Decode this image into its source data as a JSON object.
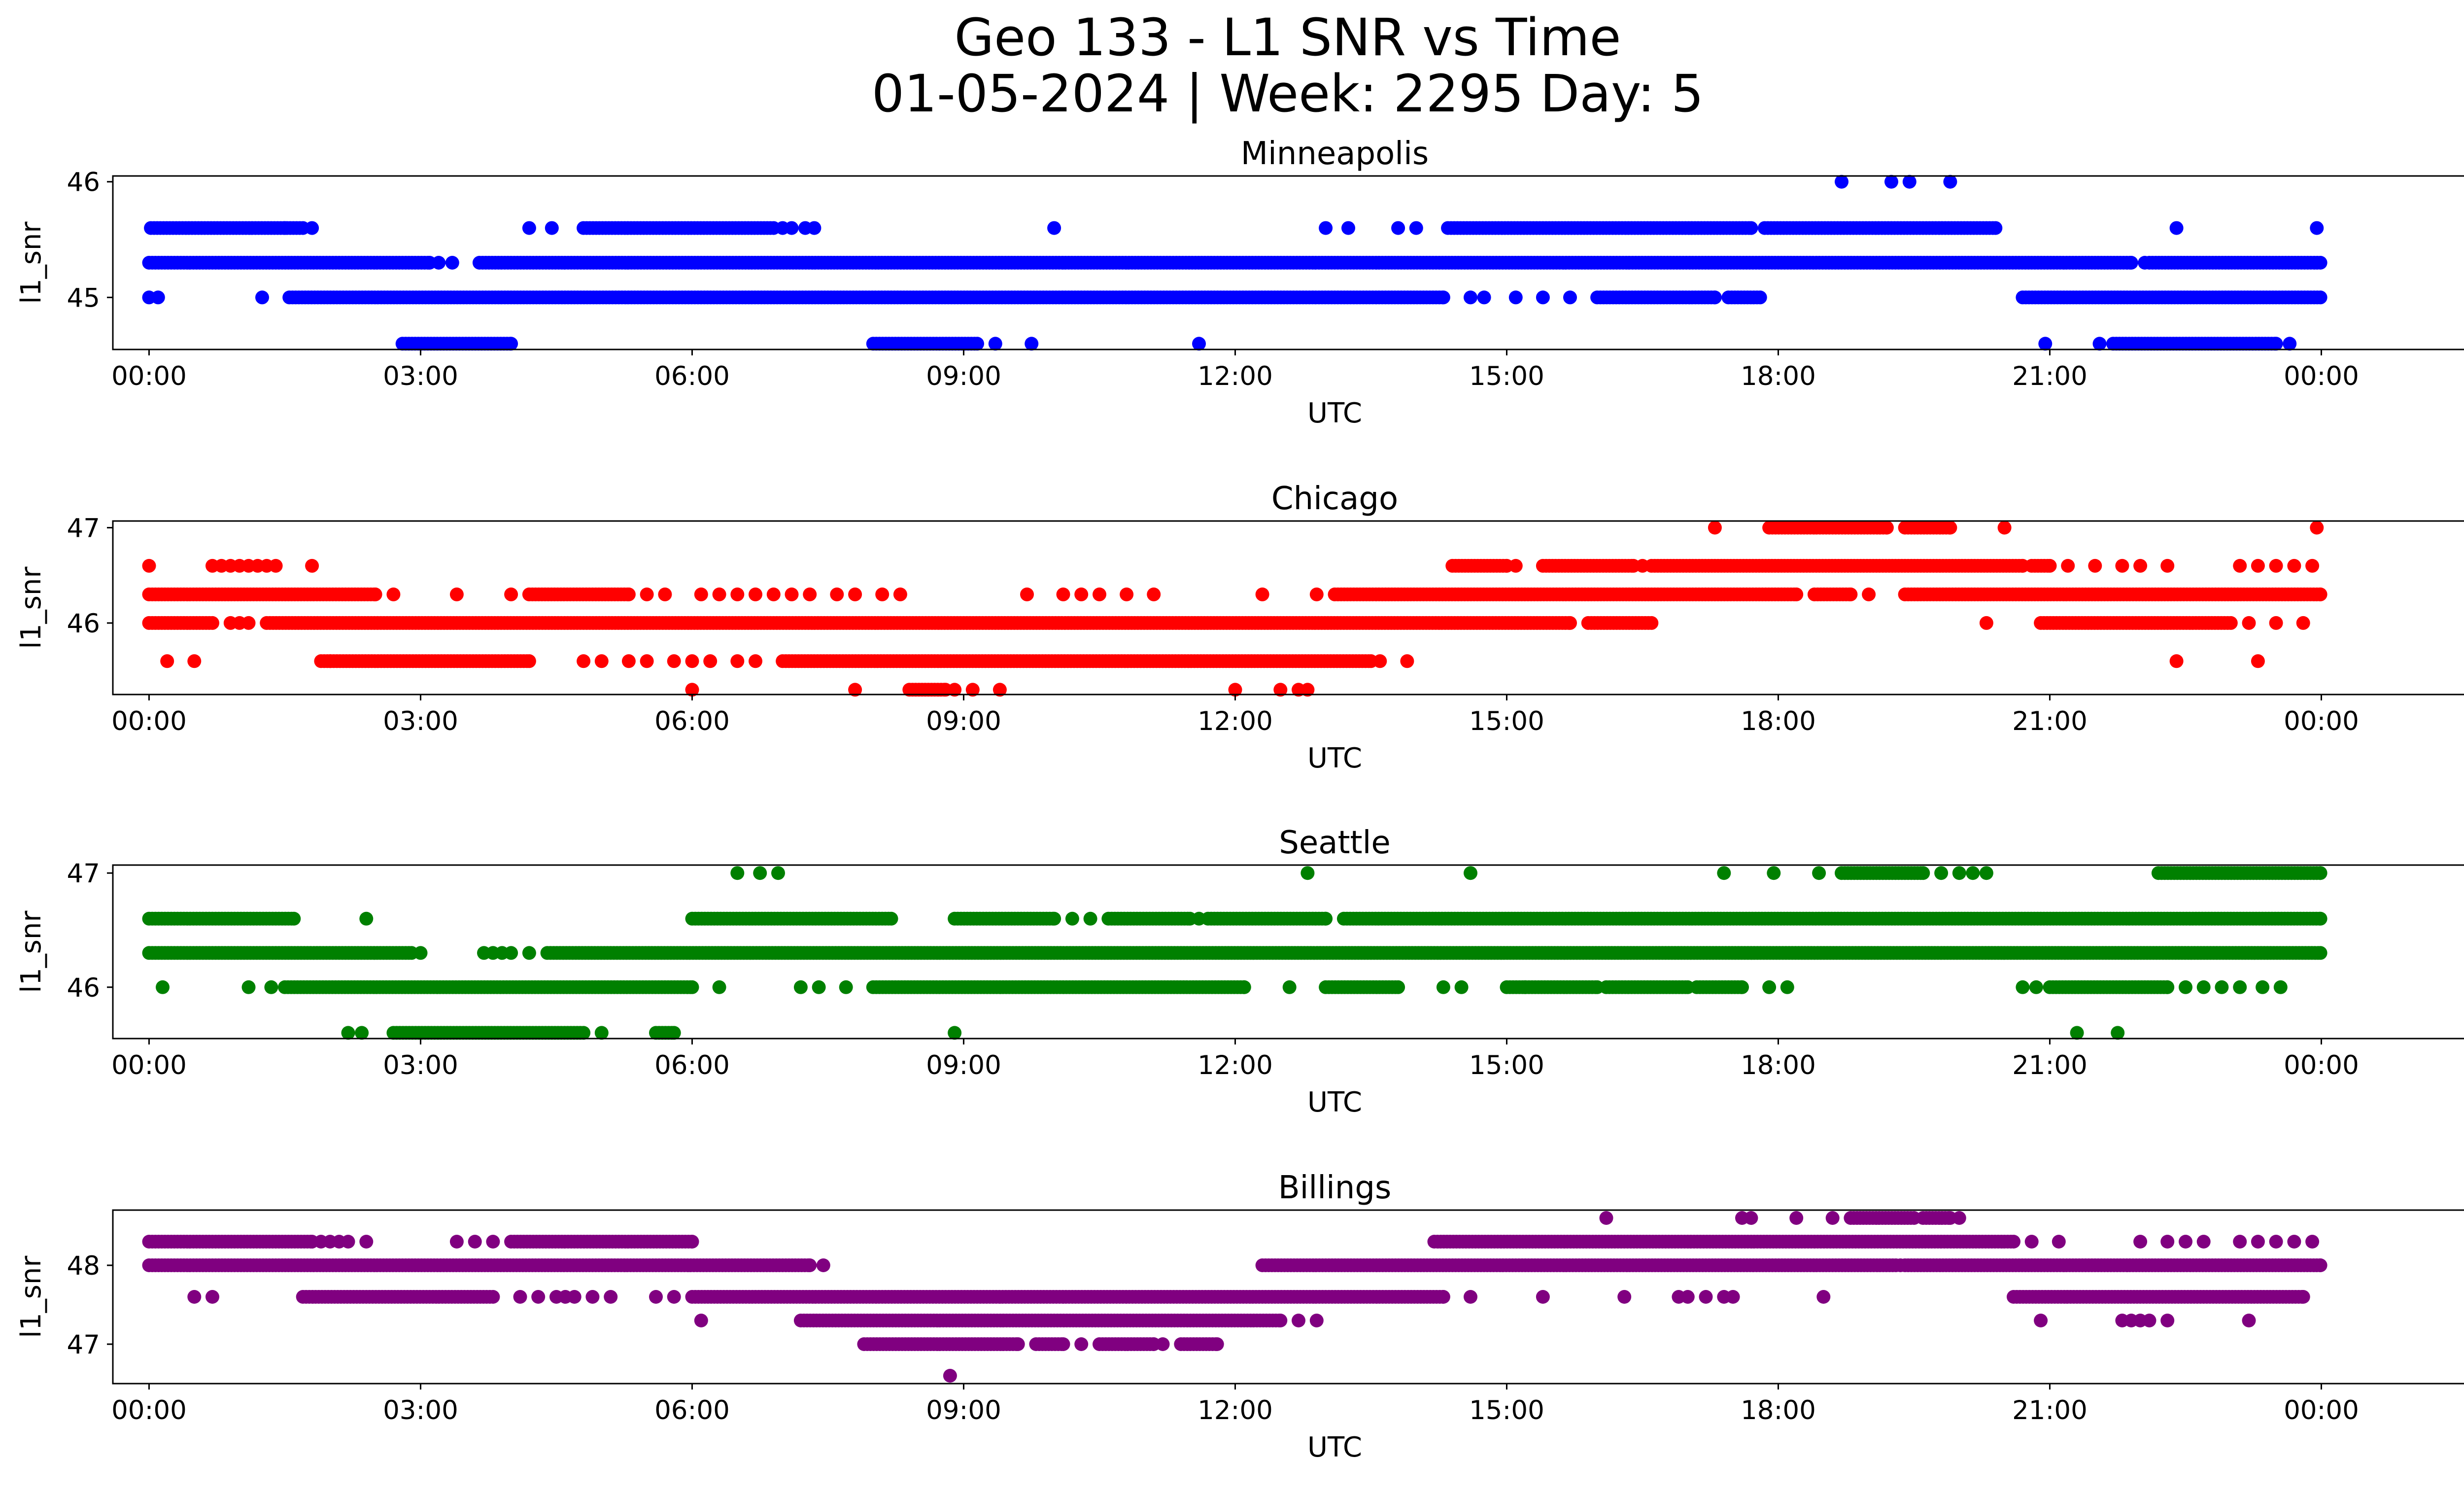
{
  "suptitle": {
    "line1": "Geo 133 - L1 SNR vs Time",
    "line2": "01-05-2024 | Week: 2295 Day: 5"
  },
  "chart_data": [
    {
      "type": "scatter",
      "title": "Minneapolis",
      "xlabel": "UTC",
      "ylabel": "l1_snr",
      "color": "#0000ff",
      "ylim": [
        44.55,
        46.05
      ],
      "yticks": [
        45,
        46
      ],
      "ytick_labels": [
        "45",
        "46"
      ],
      "xlim": [
        -0.4,
        26.6
      ],
      "xticks": [
        0,
        3,
        6,
        9,
        12,
        15,
        18,
        21,
        24
      ],
      "xtick_labels": [
        "00:00",
        "03:00",
        "06:00",
        "09:00",
        "12:00",
        "15:00",
        "18:00",
        "21:00",
        "00:00"
      ],
      "levels": [
        {
          "y": 46.0,
          "segments": [],
          "points": [
            18.7,
            19.25,
            19.45,
            19.9
          ]
        },
        {
          "y": 45.6,
          "segments": [
            [
              0.02,
              1.7
            ],
            [
              4.8,
              6.9
            ],
            [
              14.35,
              17.7
            ],
            [
              17.85,
              20.4
            ]
          ],
          "points": [
            1.5,
            1.8,
            4.2,
            4.45,
            7.0,
            7.1,
            7.25,
            7.35,
            10.0,
            13.0,
            13.25,
            13.8,
            14.0,
            22.4,
            23.95
          ]
        },
        {
          "y": 45.3,
          "segments": [
            [
              0.0,
              3.1
            ],
            [
              3.65,
              21.9
            ],
            [
              22.1,
              23.99
            ]
          ],
          "points": [
            3.2,
            3.35,
            22.05
          ]
        },
        {
          "y": 45.0,
          "segments": [
            [
              1.55,
              14.3
            ],
            [
              16.0,
              17.3
            ],
            [
              17.45,
              17.8
            ],
            [
              20.7,
              23.99
            ]
          ],
          "points": [
            0.0,
            0.1,
            1.25,
            14.6,
            14.75,
            15.1,
            15.4,
            15.7
          ]
        },
        {
          "y": 44.6,
          "segments": [
            [
              2.8,
              4.0
            ],
            [
              8.0,
              9.15
            ],
            [
              21.7,
              23.5
            ]
          ],
          "points": [
            9.35,
            9.75,
            11.6,
            20.95,
            21.55,
            23.65
          ]
        }
      ]
    },
    {
      "type": "scatter",
      "title": "Chicago",
      "xlabel": "UTC",
      "ylabel": "l1_snr",
      "color": "#ff0000",
      "ylim": [
        45.25,
        47.07
      ],
      "yticks": [
        46,
        47
      ],
      "ytick_labels": [
        "46",
        "47"
      ],
      "xlim": [
        -0.4,
        26.6
      ],
      "xticks": [
        0,
        3,
        6,
        9,
        12,
        15,
        18,
        21,
        24
      ],
      "xtick_labels": [
        "00:00",
        "03:00",
        "06:00",
        "09:00",
        "12:00",
        "15:00",
        "18:00",
        "21:00",
        "00:00"
      ],
      "levels": [
        {
          "y": 47.0,
          "segments": [
            [
              17.9,
              19.2
            ],
            [
              19.4,
              19.9
            ]
          ],
          "points": [
            17.3,
            20.5,
            23.95
          ]
        },
        {
          "y": 46.6,
          "segments": [
            [
              14.4,
              15.0
            ],
            [
              15.4,
              16.4
            ],
            [
              16.6,
              20.7
            ],
            [
              20.8,
              21.0
            ]
          ],
          "points": [
            0.0,
            0.7,
            0.8,
            0.9,
            1.0,
            1.1,
            1.2,
            1.3,
            1.4,
            1.8,
            15.1,
            16.5,
            21.2,
            21.5,
            21.8,
            22.0,
            22.3,
            23.1,
            23.3,
            23.5,
            23.7,
            23.9
          ]
        },
        {
          "y": 46.3,
          "segments": [
            [
              0.0,
              2.5
            ],
            [
              4.2,
              5.3
            ],
            [
              13.1,
              18.2
            ],
            [
              18.4,
              18.8
            ],
            [
              19.4,
              23.99
            ]
          ],
          "points": [
            2.7,
            3.4,
            4.0,
            5.5,
            5.7,
            6.1,
            6.3,
            6.5,
            6.7,
            6.9,
            7.1,
            7.3,
            7.6,
            7.8,
            8.1,
            8.3,
            9.7,
            10.1,
            10.3,
            10.5,
            10.8,
            11.1,
            12.3,
            12.9,
            19.0
          ]
        },
        {
          "y": 46.0,
          "segments": [
            [
              0.0,
              0.7
            ],
            [
              1.3,
              15.7
            ],
            [
              15.9,
              16.6
            ],
            [
              20.9,
              23.0
            ]
          ],
          "points": [
            0.9,
            1.0,
            1.1,
            20.3,
            23.2,
            23.5,
            23.8
          ]
        },
        {
          "y": 45.6,
          "segments": [
            [
              1.9,
              4.2
            ],
            [
              7.0,
              13.5
            ]
          ],
          "points": [
            0.2,
            0.5,
            2.0,
            4.8,
            5.0,
            5.3,
            5.5,
            5.8,
            6.0,
            6.2,
            6.5,
            6.7,
            13.6,
            13.9,
            22.4,
            23.3
          ]
        },
        {
          "y": 45.3,
          "segments": [
            [
              8.4,
              8.8
            ]
          ],
          "points": [
            6.0,
            7.8,
            8.9,
            9.1,
            9.4,
            12.0,
            12.5,
            12.7,
            12.8
          ]
        }
      ]
    },
    {
      "type": "scatter",
      "title": "Seattle",
      "xlabel": "UTC",
      "ylabel": "l1_snr",
      "color": "#008000",
      "ylim": [
        45.55,
        47.07
      ],
      "yticks": [
        46,
        47
      ],
      "ytick_labels": [
        "46",
        "47"
      ],
      "xlim": [
        -0.4,
        26.6
      ],
      "xticks": [
        0,
        3,
        6,
        9,
        12,
        15,
        18,
        21,
        24
      ],
      "xtick_labels": [
        "00:00",
        "03:00",
        "06:00",
        "09:00",
        "12:00",
        "15:00",
        "18:00",
        "21:00",
        "00:00"
      ],
      "levels": [
        {
          "y": 47.0,
          "segments": [
            [
              18.7,
              19.6
            ],
            [
              22.2,
              23.99
            ]
          ],
          "points": [
            6.5,
            6.75,
            6.95,
            12.8,
            14.6,
            17.4,
            17.95,
            18.45,
            19.8,
            20.0,
            20.15,
            20.3
          ]
        },
        {
          "y": 46.6,
          "segments": [
            [
              0.0,
              1.6
            ],
            [
              6.0,
              8.2
            ],
            [
              8.9,
              10.0
            ],
            [
              10.6,
              11.5
            ],
            [
              11.7,
              13.0
            ],
            [
              13.2,
              23.99
            ]
          ],
          "points": [
            2.4,
            10.2,
            10.4,
            11.6
          ]
        },
        {
          "y": 46.3,
          "segments": [
            [
              0.0,
              2.9
            ],
            [
              4.4,
              23.99
            ]
          ],
          "points": [
            3.0,
            3.7,
            3.8,
            3.9,
            4.0,
            4.2
          ]
        },
        {
          "y": 46.0,
          "segments": [
            [
              1.5,
              6.0
            ],
            [
              8.0,
              12.1
            ],
            [
              13.0,
              13.8
            ],
            [
              15.0,
              16.0
            ],
            [
              16.1,
              17.0
            ],
            [
              17.1,
              17.6
            ],
            [
              21.0,
              22.3
            ]
          ],
          "points": [
            0.15,
            1.1,
            1.35,
            6.3,
            7.2,
            7.4,
            7.7,
            12.6,
            14.3,
            14.5,
            15.2,
            17.9,
            18.1,
            20.7,
            20.85,
            22.5,
            22.7,
            22.9,
            23.1,
            23.35,
            23.55
          ]
        },
        {
          "y": 45.6,
          "segments": [
            [
              2.7,
              4.8
            ],
            [
              5.6,
              5.8
            ]
          ],
          "points": [
            2.2,
            2.35,
            5.0,
            8.9,
            21.3,
            21.75
          ]
        }
      ]
    },
    {
      "type": "scatter",
      "title": "Billings",
      "xlabel": "UTC",
      "ylabel": "l1_snr",
      "color": "#800080",
      "ylim": [
        46.5,
        48.7
      ],
      "yticks": [
        47,
        48
      ],
      "ytick_labels": [
        "47",
        "48"
      ],
      "xlim": [
        -0.4,
        26.6
      ],
      "xticks": [
        0,
        3,
        6,
        9,
        12,
        15,
        18,
        21,
        24
      ],
      "xtick_labels": [
        "00:00",
        "03:00",
        "06:00",
        "09:00",
        "12:00",
        "15:00",
        "18:00",
        "21:00",
        "00:00"
      ],
      "levels": [
        {
          "y": 48.6,
          "segments": [
            [
              18.8,
              19.5
            ],
            [
              19.6,
              19.9
            ]
          ],
          "points": [
            16.1,
            17.6,
            17.7,
            18.2,
            18.6,
            20.0
          ]
        },
        {
          "y": 48.3,
          "segments": [
            [
              0.0,
              1.8
            ],
            [
              4.0,
              6.0
            ],
            [
              14.2,
              20.6
            ]
          ],
          "points": [
            1.9,
            2.0,
            2.1,
            2.2,
            2.4,
            3.4,
            3.6,
            3.8,
            20.8,
            21.1,
            22.0,
            22.3,
            22.5,
            22.7,
            23.1,
            23.3,
            23.5,
            23.7,
            23.9
          ]
        },
        {
          "y": 48.0,
          "segments": [
            [
              0.0,
              7.3
            ],
            [
              12.3,
              19.3
            ],
            [
              19.4,
              23.99
            ]
          ],
          "points": [
            7.45,
            19.35
          ]
        },
        {
          "y": 47.6,
          "segments": [
            [
              1.7,
              3.8
            ],
            [
              6.0,
              14.3
            ],
            [
              20.6,
              23.8
            ]
          ],
          "points": [
            0.5,
            0.7,
            4.1,
            4.3,
            4.5,
            4.6,
            4.7,
            4.9,
            5.1,
            5.6,
            5.8,
            14.6,
            15.4,
            16.3,
            16.9,
            17.0,
            17.2,
            17.4,
            17.5,
            18.5
          ]
        },
        {
          "y": 47.3,
          "segments": [
            [
              7.2,
              12.5
            ]
          ],
          "points": [
            6.1,
            12.7,
            12.9,
            20.9,
            21.8,
            21.9,
            22.0,
            22.1,
            22.3,
            23.2
          ]
        },
        {
          "y": 47.0,
          "segments": [
            [
              7.9,
              9.6
            ],
            [
              9.8,
              10.1
            ],
            [
              10.5,
              11.1
            ],
            [
              11.4,
              11.8
            ]
          ],
          "points": [
            10.3,
            11.2
          ]
        },
        {
          "y": 46.6,
          "segments": [],
          "points": [
            8.85
          ]
        }
      ]
    }
  ]
}
